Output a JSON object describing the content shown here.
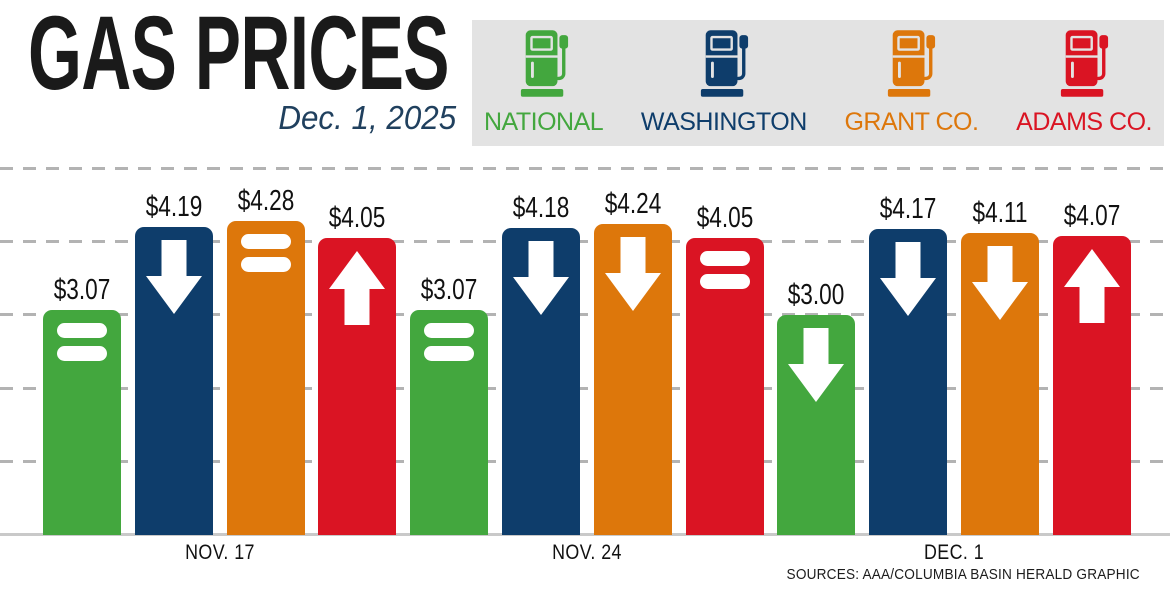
{
  "header": {
    "title": "GAS PRICES",
    "date": "Dec. 1, 2025"
  },
  "legend": {
    "items": [
      {
        "label": "NATIONAL"
      },
      {
        "label": "WASHINGTON"
      },
      {
        "label": "GRANT CO."
      },
      {
        "label": "ADAMS CO."
      }
    ]
  },
  "footer": {
    "source": "SOURCES: AAA/COLUMBIA BASIN HERALD GRAPHIC"
  },
  "colors": {
    "national_green": "#43a73e",
    "washington_navy": "#0e3d6b",
    "grant_orange": "#dd770b",
    "adams_red": "#da1423",
    "legend_background": "#e3e3e3",
    "gridline_gray": "#b3b3b3",
    "baseline_gray": "#c9c9c9",
    "title_black": "#1a1a1a",
    "date_navy": "#20405e",
    "text_black": "#111111"
  },
  "chart_data": {
    "type": "bar",
    "title": "GAS PRICES",
    "subtitle": "Dec. 1, 2025",
    "categories": [
      "NOV. 17",
      "NOV. 24",
      "DEC. 1"
    ],
    "series": [
      {
        "name": "National",
        "color": "#43a73e",
        "values": [
          3.07,
          3.07,
          3.0
        ],
        "labels": [
          "$3.07",
          "$3.07",
          "$3.00"
        ],
        "trends": [
          "steady",
          "steady",
          "down"
        ]
      },
      {
        "name": "Washington",
        "color": "#0e3d6b",
        "values": [
          4.19,
          4.18,
          4.17
        ],
        "labels": [
          "$4.19",
          "$4.18",
          "$4.17"
        ],
        "trends": [
          "down",
          "down",
          "down"
        ]
      },
      {
        "name": "Grant Co.",
        "color": "#dd770b",
        "values": [
          4.28,
          4.24,
          4.11
        ],
        "labels": [
          "$4.28",
          "$4.24",
          "$4.11"
        ],
        "trends": [
          "steady",
          "down",
          "down"
        ]
      },
      {
        "name": "Adams Co.",
        "color": "#da1423",
        "values": [
          4.05,
          4.05,
          4.07
        ],
        "labels": [
          "$4.05",
          "$4.05",
          "$4.07"
        ],
        "trends": [
          "up",
          "steady",
          "up"
        ]
      }
    ],
    "ylim": [
      0,
      5
    ],
    "gridline_values": [
      1,
      2,
      3,
      4,
      5
    ],
    "grid_style": "dashed",
    "legend_position": "top-right"
  }
}
